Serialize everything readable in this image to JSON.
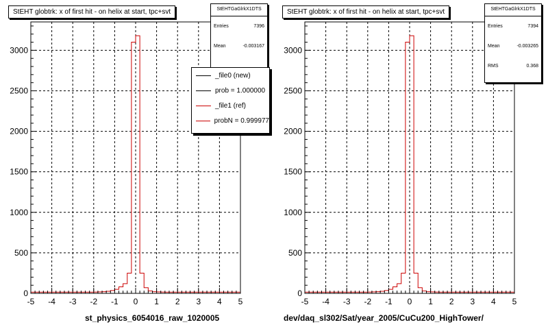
{
  "chart_data": [
    {
      "type": "bar",
      "title": "StEHT globtrk: x of first hit - on helix at start, tpc+svt",
      "xlabel": "st_physics_6054016_raw_1020005",
      "xlim": [
        -5,
        5
      ],
      "ylim": [
        0,
        3350
      ],
      "xticks": [
        "-5",
        "-4",
        "-3",
        "-2",
        "-1",
        "0",
        "1",
        "2",
        "3",
        "4",
        "5"
      ],
      "yticks": [
        "0",
        "500",
        "1000",
        "1500",
        "2000",
        "2500",
        "3000"
      ],
      "grid": true,
      "bin_width": 0.2,
      "bin_edges_start": -5,
      "values": [
        15,
        15,
        15,
        15,
        15,
        15,
        15,
        15,
        15,
        15,
        15,
        15,
        15,
        15,
        15,
        16,
        18,
        20,
        25,
        35,
        50,
        80,
        120,
        250,
        3100,
        3180,
        250,
        70,
        30,
        20,
        18,
        16,
        15,
        15,
        15,
        15,
        15,
        15,
        15,
        15,
        15,
        15,
        15,
        15,
        15,
        15,
        15,
        15,
        15,
        15
      ],
      "stats": {
        "name": "StEHTGaGlrkX1DTS",
        "entries_label": "Entries",
        "entries": "7396",
        "mean_label": "Mean",
        "mean": "-0.003167"
      },
      "legend": {
        "placement": "top-right",
        "items": [
          {
            "label": "_file0 (new)",
            "color": "#000000"
          },
          {
            "label": "prob = 1.000000",
            "color": "#000000"
          },
          {
            "label": "_file1 (ref)",
            "color": "#cc0000"
          },
          {
            "label": "probN = 0.999977",
            "color": "#cc0000"
          }
        ]
      }
    },
    {
      "type": "bar",
      "title": "StEHT globtrk: x of first hit - on helix at start, tpc+svt",
      "xlabel": "dev/daq_sl302/Sat/year_2005/CuCu200_HighTower/",
      "xlim": [
        -5,
        5
      ],
      "ylim": [
        0,
        3350
      ],
      "xticks": [
        "-5",
        "-4",
        "-3",
        "-2",
        "-1",
        "0",
        "1",
        "2",
        "3",
        "4",
        "5"
      ],
      "yticks": [
        "0",
        "500",
        "1000",
        "1500",
        "2000",
        "2500",
        "3000"
      ],
      "grid": true,
      "bin_width": 0.2,
      "bin_edges_start": -5,
      "values": [
        15,
        15,
        15,
        15,
        15,
        15,
        15,
        15,
        15,
        15,
        15,
        15,
        15,
        15,
        15,
        16,
        18,
        20,
        25,
        35,
        50,
        80,
        120,
        250,
        3100,
        3180,
        250,
        70,
        30,
        20,
        18,
        16,
        15,
        15,
        15,
        15,
        15,
        15,
        15,
        15,
        15,
        15,
        15,
        15,
        15,
        15,
        15,
        15,
        15,
        15
      ],
      "stats": {
        "name": "StEHTGaGlrkX1DTS",
        "entries_label": "Entries",
        "entries": "7394",
        "mean_label": "Mean",
        "mean": "-0.003265",
        "rms_label": "RMS",
        "rms": "0.368"
      }
    }
  ],
  "colors": {
    "line": "#cc0000",
    "axis": "#000000",
    "grid": "#000000"
  }
}
